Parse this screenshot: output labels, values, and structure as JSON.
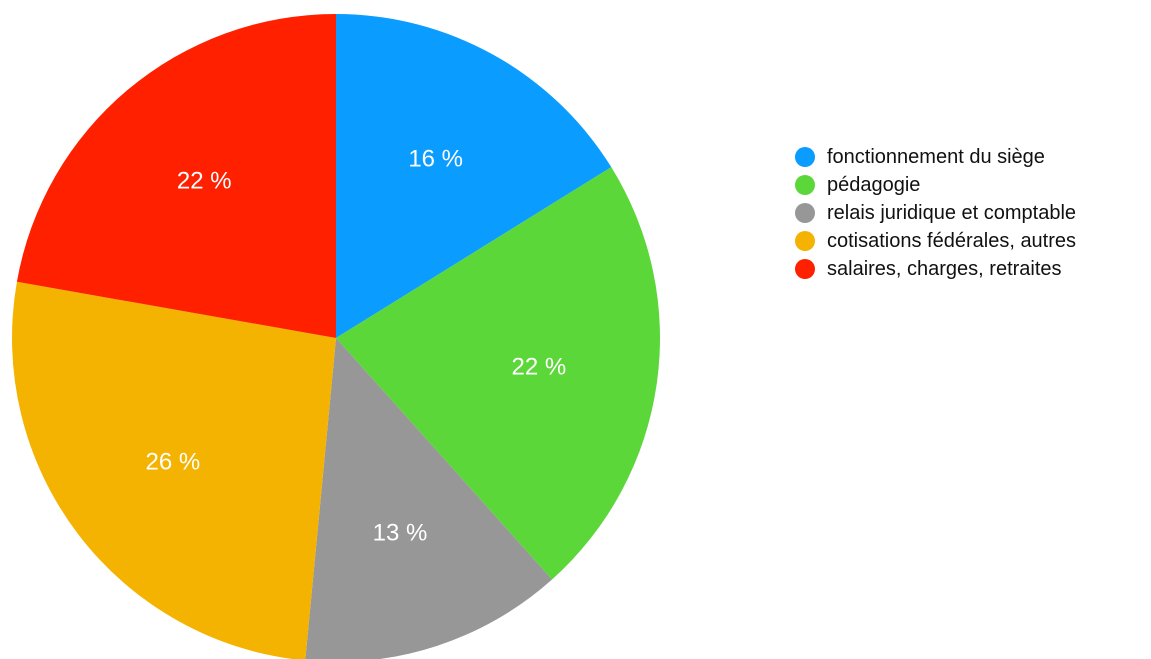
{
  "chart_data": {
    "type": "pie",
    "title": "",
    "start_angle_deg": 0,
    "direction": "clockwise",
    "legend_position": "right",
    "slices": [
      {
        "name": "fonctionnement du siège",
        "value": 16,
        "label": "16 %",
        "color": "#0a9cff"
      },
      {
        "name": "pédagogie",
        "value": 22,
        "label": "22 %",
        "color": "#5bd73a"
      },
      {
        "name": "relais juridique et comptable",
        "value": 13,
        "label": "13 %",
        "color": "#979797"
      },
      {
        "name": "cotisations fédérales, autres",
        "value": 26,
        "label": "26 %",
        "color": "#f4b300"
      },
      {
        "name": "salaires, charges, retraites",
        "value": 22,
        "label": "22 %",
        "color": "#ff2000"
      }
    ]
  }
}
